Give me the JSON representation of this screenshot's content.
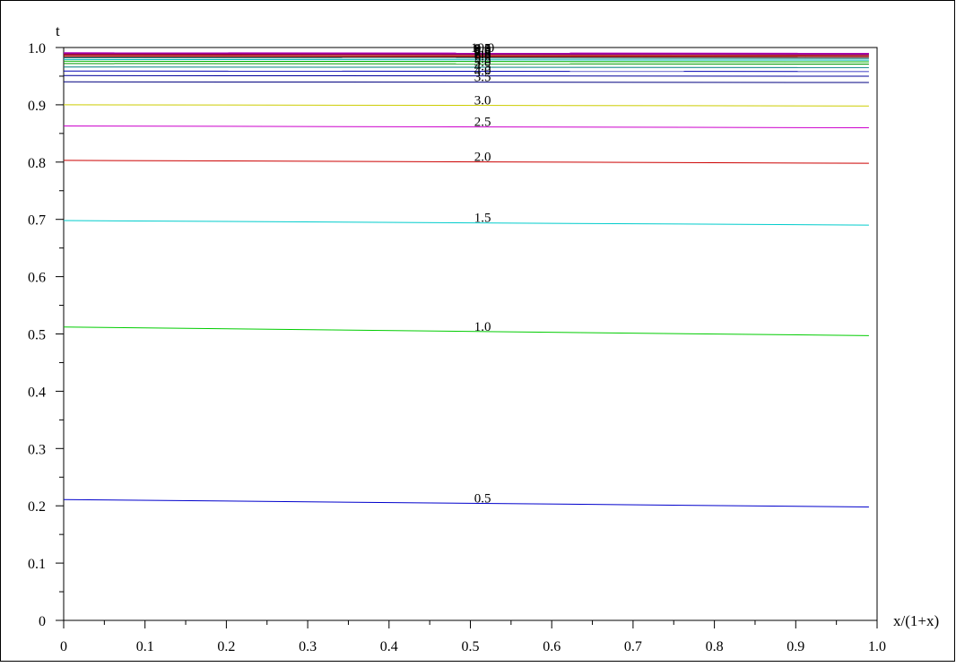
{
  "chart_data": {
    "type": "line",
    "title": "",
    "xlabel": "x/(1+x)",
    "ylabel": "t",
    "xlim": [
      0,
      1
    ],
    "ylim": [
      0,
      1
    ],
    "grid": false,
    "x_ticks": [
      "0",
      "0.1",
      "0.2",
      "0.3",
      "0.4",
      "0.5",
      "0.6",
      "0.7",
      "0.8",
      "0.9",
      "1.0"
    ],
    "y_ticks": [
      "0",
      "0.1",
      "0.2",
      "0.3",
      "0.4",
      "0.5",
      "0.6",
      "0.7",
      "0.8",
      "0.9",
      "1.0"
    ],
    "x": [
      0,
      0.99
    ],
    "series": [
      {
        "label": "0.5",
        "color": "#0000cc",
        "values": [
          0.211,
          0.198
        ]
      },
      {
        "label": "1.0",
        "color": "#00cc00",
        "values": [
          0.512,
          0.497
        ]
      },
      {
        "label": "1.5",
        "color": "#00cccc",
        "values": [
          0.698,
          0.69
        ]
      },
      {
        "label": "2.0",
        "color": "#cc0000",
        "values": [
          0.803,
          0.798
        ]
      },
      {
        "label": "2.5",
        "color": "#cc00cc",
        "values": [
          0.863,
          0.86
        ]
      },
      {
        "label": "3.0",
        "color": "#cccc00",
        "values": [
          0.9,
          0.898
        ]
      },
      {
        "label": "3.5",
        "color": "#000080",
        "values": [
          0.94,
          0.939
        ]
      },
      {
        "label": "4.0",
        "color": "#000099",
        "values": [
          0.951,
          0.95
        ]
      },
      {
        "label": "4.5",
        "color": "#0000b3",
        "values": [
          0.959,
          0.958
        ]
      },
      {
        "label": "5.0",
        "color": "#008080",
        "values": [
          0.966,
          0.965
        ]
      },
      {
        "label": "5.5",
        "color": "#009900",
        "values": [
          0.972,
          0.971
        ]
      },
      {
        "label": "6.0",
        "color": "#00b300",
        "values": [
          0.976,
          0.975
        ]
      },
      {
        "label": "6.5",
        "color": "#00b3b3",
        "values": [
          0.979,
          0.978
        ]
      },
      {
        "label": "7.0",
        "color": "#008080",
        "values": [
          0.982,
          0.981
        ]
      },
      {
        "label": "7.5",
        "color": "#800000",
        "values": [
          0.984,
          0.983
        ]
      },
      {
        "label": "8.0",
        "color": "#990000",
        "values": [
          0.986,
          0.985
        ]
      },
      {
        "label": "8.5",
        "color": "#b30000",
        "values": [
          0.988,
          0.987
        ]
      },
      {
        "label": "9.0",
        "color": "#800080",
        "values": [
          0.989,
          0.988
        ]
      },
      {
        "label": "9.5",
        "color": "#990099",
        "values": [
          0.99,
          0.989
        ]
      },
      {
        "label": "10.0",
        "color": "#b300b3",
        "values": [
          0.991,
          0.99
        ]
      }
    ]
  }
}
